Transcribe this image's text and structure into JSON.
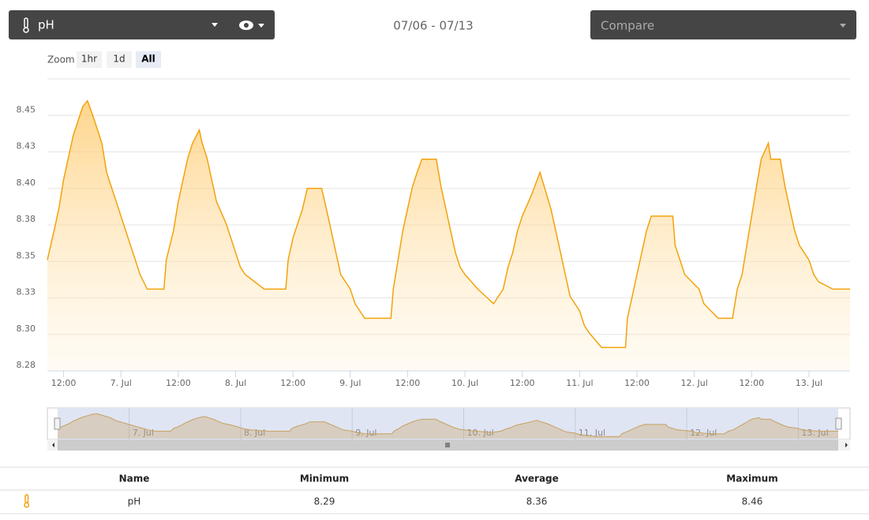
{
  "toolbar": {
    "sensor": "pH",
    "date_range": "07/06 - 07/13",
    "compare": "Compare"
  },
  "zoom": {
    "label": "Zoom",
    "buttons": [
      "1hr",
      "1d",
      "All"
    ]
  },
  "chart_data": {
    "type": "area",
    "color": "#f2a20c",
    "grid": true,
    "x": [
      8.6,
      10,
      11,
      12,
      13,
      14,
      15,
      16,
      17,
      18,
      19,
      20,
      21,
      22,
      23,
      24,
      25,
      26,
      27,
      28,
      29.5,
      33,
      33.5,
      35,
      36,
      37,
      38,
      39,
      40.4,
      41,
      42,
      43,
      44,
      46,
      47,
      48,
      49,
      50,
      54,
      58.5,
      59,
      60,
      61,
      62,
      63,
      66,
      67,
      68,
      69,
      70,
      72,
      73,
      75,
      80.5,
      81,
      82,
      83,
      84,
      85,
      86,
      87,
      90,
      91,
      92,
      93,
      94,
      95,
      96,
      98.7,
      102,
      104,
      105,
      106,
      107,
      108,
      110,
      111.7,
      112.7,
      114,
      115,
      116,
      117,
      118,
      120,
      121,
      122,
      124.6,
      129.6,
      130,
      131,
      132,
      133,
      134,
      135,
      139.5,
      140,
      141,
      142,
      145,
      146,
      149,
      152,
      153,
      154,
      155,
      156,
      157,
      158,
      159.5,
      160,
      162,
      163,
      164,
      165,
      166,
      168,
      169,
      170,
      173,
      176.6
    ],
    "values": [
      8.351,
      8.371,
      8.386,
      8.406,
      8.421,
      8.436,
      8.446,
      8.456,
      8.46,
      8.451,
      8.441,
      8.431,
      8.411,
      8.401,
      8.391,
      8.381,
      8.371,
      8.361,
      8.351,
      8.341,
      8.331,
      8.331,
      8.351,
      8.371,
      8.391,
      8.406,
      8.421,
      8.431,
      8.44,
      8.431,
      8.421,
      8.406,
      8.391,
      8.376,
      8.366,
      8.356,
      8.346,
      8.341,
      8.331,
      8.331,
      8.351,
      8.366,
      8.376,
      8.386,
      8.4,
      8.4,
      8.386,
      8.371,
      8.356,
      8.341,
      8.331,
      8.321,
      8.311,
      8.311,
      8.331,
      8.351,
      8.371,
      8.386,
      8.401,
      8.411,
      8.42,
      8.42,
      8.401,
      8.386,
      8.371,
      8.356,
      8.346,
      8.341,
      8.331,
      8.321,
      8.331,
      8.346,
      8.356,
      8.371,
      8.381,
      8.396,
      8.411,
      8.4,
      8.386,
      8.371,
      8.356,
      8.341,
      8.326,
      8.316,
      8.306,
      8.301,
      8.291,
      8.291,
      8.311,
      8.326,
      8.341,
      8.356,
      8.371,
      8.381,
      8.381,
      8.361,
      8.351,
      8.341,
      8.331,
      8.321,
      8.311,
      8.311,
      8.331,
      8.341,
      8.361,
      8.381,
      8.401,
      8.42,
      8.431,
      8.42,
      8.42,
      8.401,
      8.386,
      8.371,
      8.361,
      8.351,
      8.341,
      8.336,
      8.331,
      8.331
    ],
    "xlim": [
      8.6,
      176.6
    ],
    "xticks": [
      {
        "value": 12,
        "label": "12:00"
      },
      {
        "value": 24,
        "label": "7. Jul"
      },
      {
        "value": 36,
        "label": "12:00"
      },
      {
        "value": 48,
        "label": "8. Jul"
      },
      {
        "value": 60,
        "label": "12:00"
      },
      {
        "value": 72,
        "label": "9. Jul"
      },
      {
        "value": 84,
        "label": "12:00"
      },
      {
        "value": 96,
        "label": "10. Jul"
      },
      {
        "value": 108,
        "label": "12:00"
      },
      {
        "value": 120,
        "label": "11. Jul"
      },
      {
        "value": 132,
        "label": "12:00"
      },
      {
        "value": 144,
        "label": "12. Jul"
      },
      {
        "value": 156,
        "label": "12:00"
      },
      {
        "value": 168,
        "label": "13. Jul"
      }
    ],
    "ylim": [
      8.275,
      8.475
    ],
    "yticks": [
      {
        "value": 8.275,
        "label": "8.28"
      },
      {
        "value": 8.3,
        "label": "8.30"
      },
      {
        "value": 8.325,
        "label": "8.33"
      },
      8.35,
      {
        "value": 8.375,
        "label": "8.38"
      },
      {
        "value": 8.4,
        "label": "8.40"
      },
      {
        "value": 8.425,
        "label": "8.43"
      },
      8.45
    ]
  },
  "table": {
    "headers": [
      "Name",
      "Minimum",
      "Average",
      "Maximum"
    ],
    "rows": [
      [
        "pH",
        8.29,
        8.36,
        8.46
      ]
    ]
  }
}
